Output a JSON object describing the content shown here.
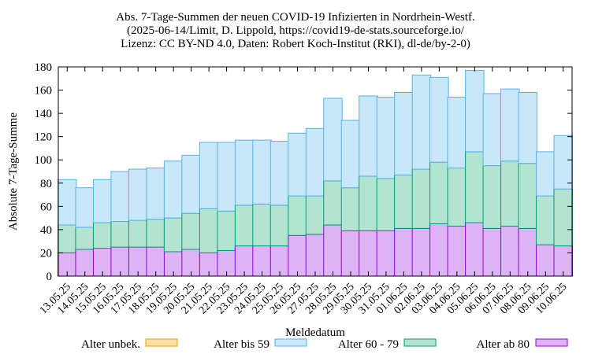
{
  "chart_data": {
    "type": "bar",
    "stacked": true,
    "title": [
      "Abs. 7-Tage-Summen der neuen COVID-19 Infizierten in Nordrhein-Westf.",
      "(2025-06-14/Limit, D. Lippold, https://covid19-de-stats.sourceforge.io/",
      "Lizenz: CC BY-ND 4.0, Daten: Robert Koch-Institut (RKI), dl-de/by-2-0)"
    ],
    "xlabel": "Meldedatum",
    "ylabel": "Absolute 7-Tage-Summe",
    "ylim": [
      0,
      180
    ],
    "yticks": [
      0,
      20,
      40,
      60,
      80,
      100,
      120,
      140,
      160,
      180
    ],
    "grid": false,
    "legend_position": "bottom",
    "categories": [
      "13.05.25",
      "14.05.25",
      "15.05.25",
      "16.05.25",
      "17.05.25",
      "18.05.25",
      "19.05.25",
      "20.05.25",
      "21.05.25",
      "22.05.25",
      "23.05.25",
      "24.05.25",
      "25.05.25",
      "26.05.25",
      "27.05.25",
      "28.05.25",
      "29.05.25",
      "30.05.25",
      "31.05.25",
      "01.06.25",
      "02.06.25",
      "03.06.25",
      "04.06.25",
      "05.06.25",
      "06.06.25",
      "07.06.25",
      "08.06.25",
      "09.06.25",
      "10.06.25"
    ],
    "series": [
      {
        "name": "Alter ab 80",
        "fill": "#deb3f5",
        "stroke": "#9400d3",
        "values": [
          20,
          23,
          24,
          25,
          25,
          25,
          21,
          23,
          20,
          22,
          26,
          26,
          26,
          35,
          36,
          44,
          39,
          39,
          39,
          41,
          41,
          45,
          43,
          46,
          41,
          43,
          41,
          27,
          26
        ]
      },
      {
        "name": "Alter 60 - 79",
        "fill": "#b3e3d1",
        "stroke": "#009e73",
        "values": [
          24,
          19,
          22,
          22,
          23,
          24,
          29,
          31,
          38,
          34,
          35,
          36,
          35,
          34,
          33,
          38,
          37,
          47,
          45,
          46,
          51,
          53,
          50,
          61,
          54,
          56,
          56,
          42,
          49
        ]
      },
      {
        "name": "Alter bis 59",
        "fill": "#c8e7f9",
        "stroke": "#56b4e9",
        "values": [
          39,
          34,
          37,
          43,
          44,
          44,
          49,
          50,
          57,
          59,
          56,
          55,
          55,
          54,
          58,
          71,
          58,
          69,
          70,
          71,
          81,
          73,
          61,
          70,
          62,
          62,
          61,
          38,
          46
        ]
      },
      {
        "name": "Alter unbek.",
        "fill": "#fbe0a6",
        "stroke": "#e69f00",
        "values": [
          0,
          0,
          0,
          0,
          0,
          0,
          0,
          0,
          0,
          0,
          0,
          0,
          0,
          0,
          0,
          0,
          0,
          0,
          0,
          0,
          0,
          0,
          0,
          0,
          0,
          0,
          0,
          0,
          0
        ]
      }
    ],
    "legend_order": [
      "Alter unbek.",
      "Alter bis 59",
      "Alter 60 - 79",
      "Alter ab 80"
    ]
  }
}
